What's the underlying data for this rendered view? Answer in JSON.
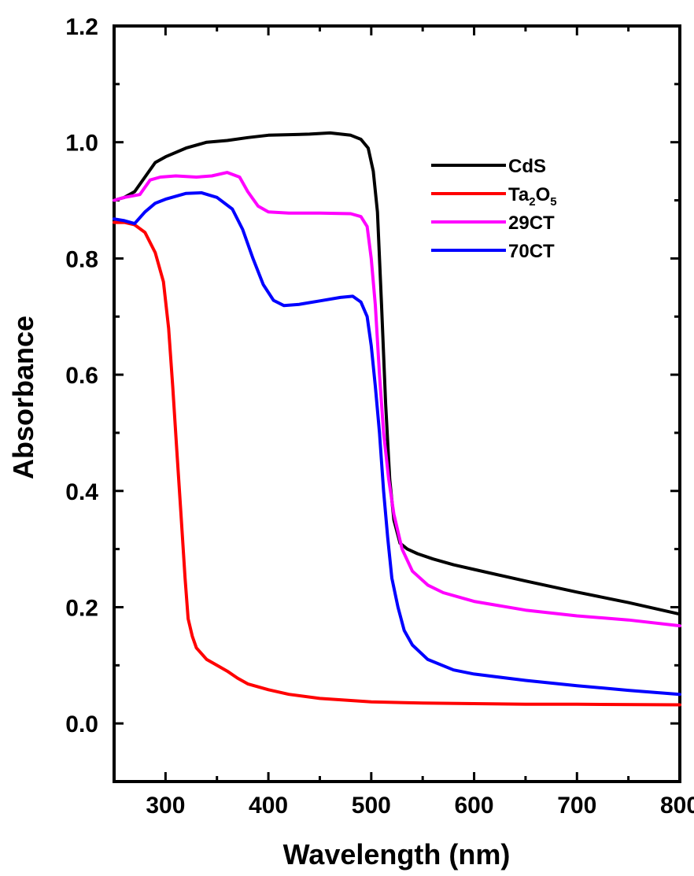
{
  "chart_data": {
    "type": "line",
    "xlabel": "Wavelength (nm)",
    "ylabel": "Absorbance",
    "xlim": [
      250,
      800
    ],
    "ylim": [
      -0.1,
      1.2
    ],
    "x_ticks": [
      300,
      400,
      500,
      600,
      700,
      800
    ],
    "x_tick_labels": [
      "300",
      "400",
      "500",
      "600",
      "700",
      "800"
    ],
    "y_ticks": [
      0.0,
      0.2,
      0.4,
      0.6,
      0.8,
      1.0,
      1.2
    ],
    "y_tick_labels": [
      "0.0",
      "0.2",
      "0.4",
      "0.6",
      "0.8",
      "1.0",
      "1.2"
    ],
    "grid": false,
    "legend_position": "top-right",
    "series": [
      {
        "name": "CdS",
        "legend_main": "CdS",
        "color": "#000000",
        "points": [
          [
            250,
            0.9
          ],
          [
            260,
            0.905
          ],
          [
            270,
            0.915
          ],
          [
            280,
            0.94
          ],
          [
            290,
            0.965
          ],
          [
            300,
            0.975
          ],
          [
            320,
            0.99
          ],
          [
            340,
            1.0
          ],
          [
            360,
            1.003
          ],
          [
            380,
            1.008
          ],
          [
            400,
            1.012
          ],
          [
            420,
            1.013
          ],
          [
            440,
            1.014
          ],
          [
            460,
            1.016
          ],
          [
            480,
            1.012
          ],
          [
            490,
            1.005
          ],
          [
            497,
            0.99
          ],
          [
            502,
            0.95
          ],
          [
            506,
            0.88
          ],
          [
            510,
            0.72
          ],
          [
            514,
            0.55
          ],
          [
            518,
            0.42
          ],
          [
            522,
            0.35
          ],
          [
            528,
            0.31
          ],
          [
            535,
            0.3
          ],
          [
            545,
            0.292
          ],
          [
            560,
            0.283
          ],
          [
            580,
            0.273
          ],
          [
            600,
            0.265
          ],
          [
            650,
            0.245
          ],
          [
            700,
            0.226
          ],
          [
            750,
            0.208
          ],
          [
            800,
            0.188
          ]
        ]
      },
      {
        "name": "Ta2O5",
        "legend_main": "Ta",
        "legend_sub1": "2",
        "legend_mid": "O",
        "legend_sub2": "5",
        "color": "#ff0000",
        "points": [
          [
            250,
            0.862
          ],
          [
            260,
            0.862
          ],
          [
            270,
            0.858
          ],
          [
            280,
            0.845
          ],
          [
            290,
            0.81
          ],
          [
            298,
            0.76
          ],
          [
            303,
            0.68
          ],
          [
            307,
            0.58
          ],
          [
            311,
            0.47
          ],
          [
            315,
            0.36
          ],
          [
            319,
            0.25
          ],
          [
            322,
            0.18
          ],
          [
            326,
            0.15
          ],
          [
            330,
            0.13
          ],
          [
            340,
            0.11
          ],
          [
            350,
            0.1
          ],
          [
            360,
            0.09
          ],
          [
            370,
            0.078
          ],
          [
            380,
            0.068
          ],
          [
            400,
            0.058
          ],
          [
            420,
            0.05
          ],
          [
            450,
            0.043
          ],
          [
            500,
            0.037
          ],
          [
            550,
            0.035
          ],
          [
            600,
            0.034
          ],
          [
            650,
            0.033
          ],
          [
            700,
            0.033
          ],
          [
            800,
            0.032
          ]
        ]
      },
      {
        "name": "29CT",
        "legend_main": "29CT",
        "color": "#ff00ff",
        "points": [
          [
            250,
            0.9
          ],
          [
            260,
            0.905
          ],
          [
            275,
            0.91
          ],
          [
            285,
            0.935
          ],
          [
            295,
            0.94
          ],
          [
            310,
            0.942
          ],
          [
            330,
            0.94
          ],
          [
            345,
            0.942
          ],
          [
            360,
            0.948
          ],
          [
            372,
            0.94
          ],
          [
            380,
            0.915
          ],
          [
            390,
            0.89
          ],
          [
            400,
            0.88
          ],
          [
            420,
            0.878
          ],
          [
            450,
            0.878
          ],
          [
            480,
            0.877
          ],
          [
            490,
            0.872
          ],
          [
            496,
            0.855
          ],
          [
            500,
            0.8
          ],
          [
            504,
            0.72
          ],
          [
            508,
            0.6
          ],
          [
            512,
            0.5
          ],
          [
            517,
            0.42
          ],
          [
            522,
            0.36
          ],
          [
            530,
            0.3
          ],
          [
            540,
            0.262
          ],
          [
            555,
            0.238
          ],
          [
            570,
            0.225
          ],
          [
            600,
            0.21
          ],
          [
            650,
            0.195
          ],
          [
            700,
            0.185
          ],
          [
            750,
            0.178
          ],
          [
            800,
            0.168
          ]
        ]
      },
      {
        "name": "70CT",
        "legend_main": "70CT",
        "color": "#0000ff",
        "points": [
          [
            250,
            0.868
          ],
          [
            260,
            0.865
          ],
          [
            270,
            0.86
          ],
          [
            280,
            0.88
          ],
          [
            290,
            0.895
          ],
          [
            300,
            0.902
          ],
          [
            320,
            0.912
          ],
          [
            335,
            0.913
          ],
          [
            350,
            0.905
          ],
          [
            365,
            0.885
          ],
          [
            375,
            0.85
          ],
          [
            385,
            0.8
          ],
          [
            395,
            0.755
          ],
          [
            405,
            0.728
          ],
          [
            415,
            0.719
          ],
          [
            430,
            0.721
          ],
          [
            450,
            0.727
          ],
          [
            470,
            0.733
          ],
          [
            482,
            0.735
          ],
          [
            490,
            0.725
          ],
          [
            496,
            0.7
          ],
          [
            500,
            0.65
          ],
          [
            504,
            0.58
          ],
          [
            508,
            0.5
          ],
          [
            512,
            0.4
          ],
          [
            516,
            0.32
          ],
          [
            520,
            0.25
          ],
          [
            526,
            0.2
          ],
          [
            532,
            0.16
          ],
          [
            540,
            0.135
          ],
          [
            555,
            0.11
          ],
          [
            580,
            0.092
          ],
          [
            600,
            0.085
          ],
          [
            650,
            0.074
          ],
          [
            700,
            0.065
          ],
          [
            750,
            0.057
          ],
          [
            800,
            0.05
          ]
        ]
      }
    ]
  }
}
